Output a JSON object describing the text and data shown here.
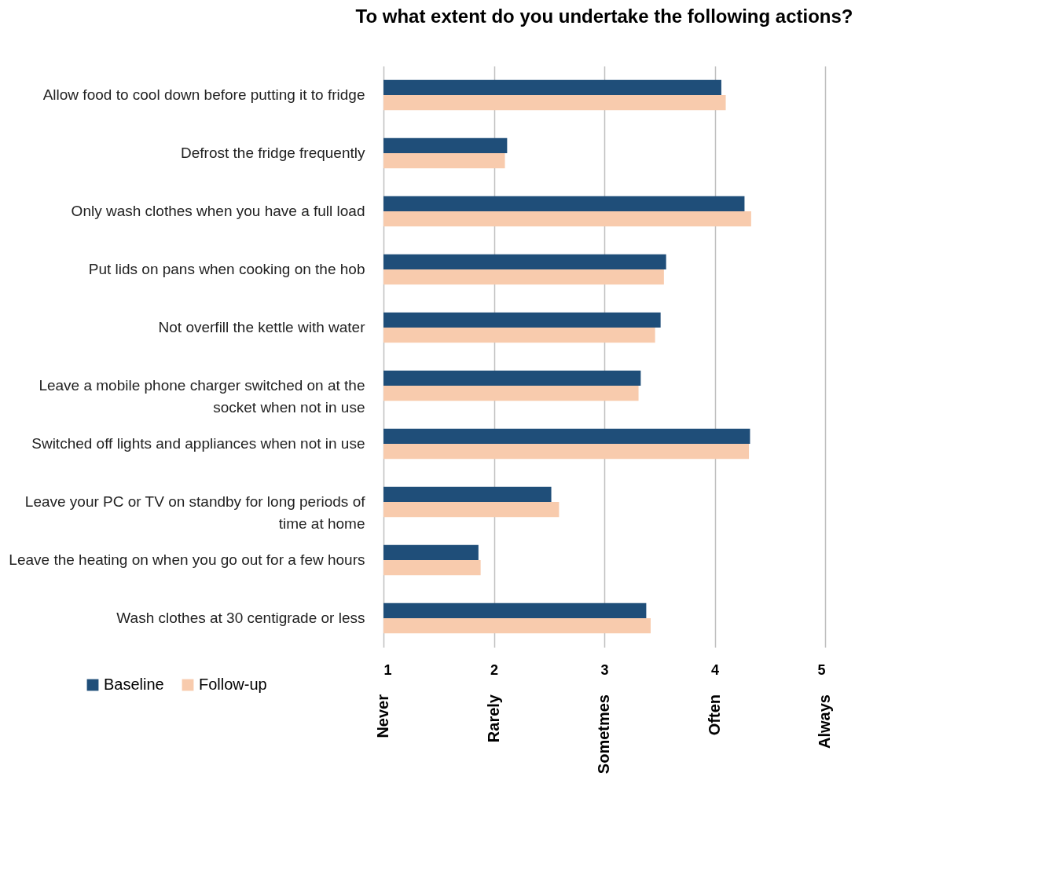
{
  "chart_data": {
    "type": "bar",
    "orientation": "horizontal",
    "title": "To what extent do you undertake the following actions?",
    "categories": [
      "Allow food to cool down before putting it to fridge",
      "Defrost the fridge frequently",
      "Only wash clothes when you have a full load",
      "Put lids on pans when cooking on the hob",
      "Not overfill the kettle with water",
      "Leave a mobile phone charger switched on at the socket when not in use",
      "Switched off lights and appliances when not in use",
      "Leave your PC or TV on standby for long periods of time at home",
      "Leave the heating on when you go out for a few hours",
      "Wash clothes at 30 centigrade or less"
    ],
    "series": [
      {
        "name": "Baseline",
        "color": "#1f4e79",
        "values": [
          4.06,
          2.12,
          4.27,
          3.56,
          3.51,
          3.33,
          4.32,
          2.52,
          1.86,
          3.38
        ]
      },
      {
        "name": "Follow-up",
        "color": "#f8cbad",
        "values": [
          4.1,
          2.1,
          4.33,
          3.54,
          3.46,
          3.31,
          4.31,
          2.59,
          1.88,
          3.42
        ]
      }
    ],
    "xlim": [
      1,
      5
    ],
    "xticks": [
      1,
      2,
      3,
      4,
      5
    ],
    "annotations": [
      "Never",
      "Rarely",
      "Sometmes",
      "Often",
      "Always"
    ],
    "grid": "x",
    "legend": "bottom left"
  }
}
